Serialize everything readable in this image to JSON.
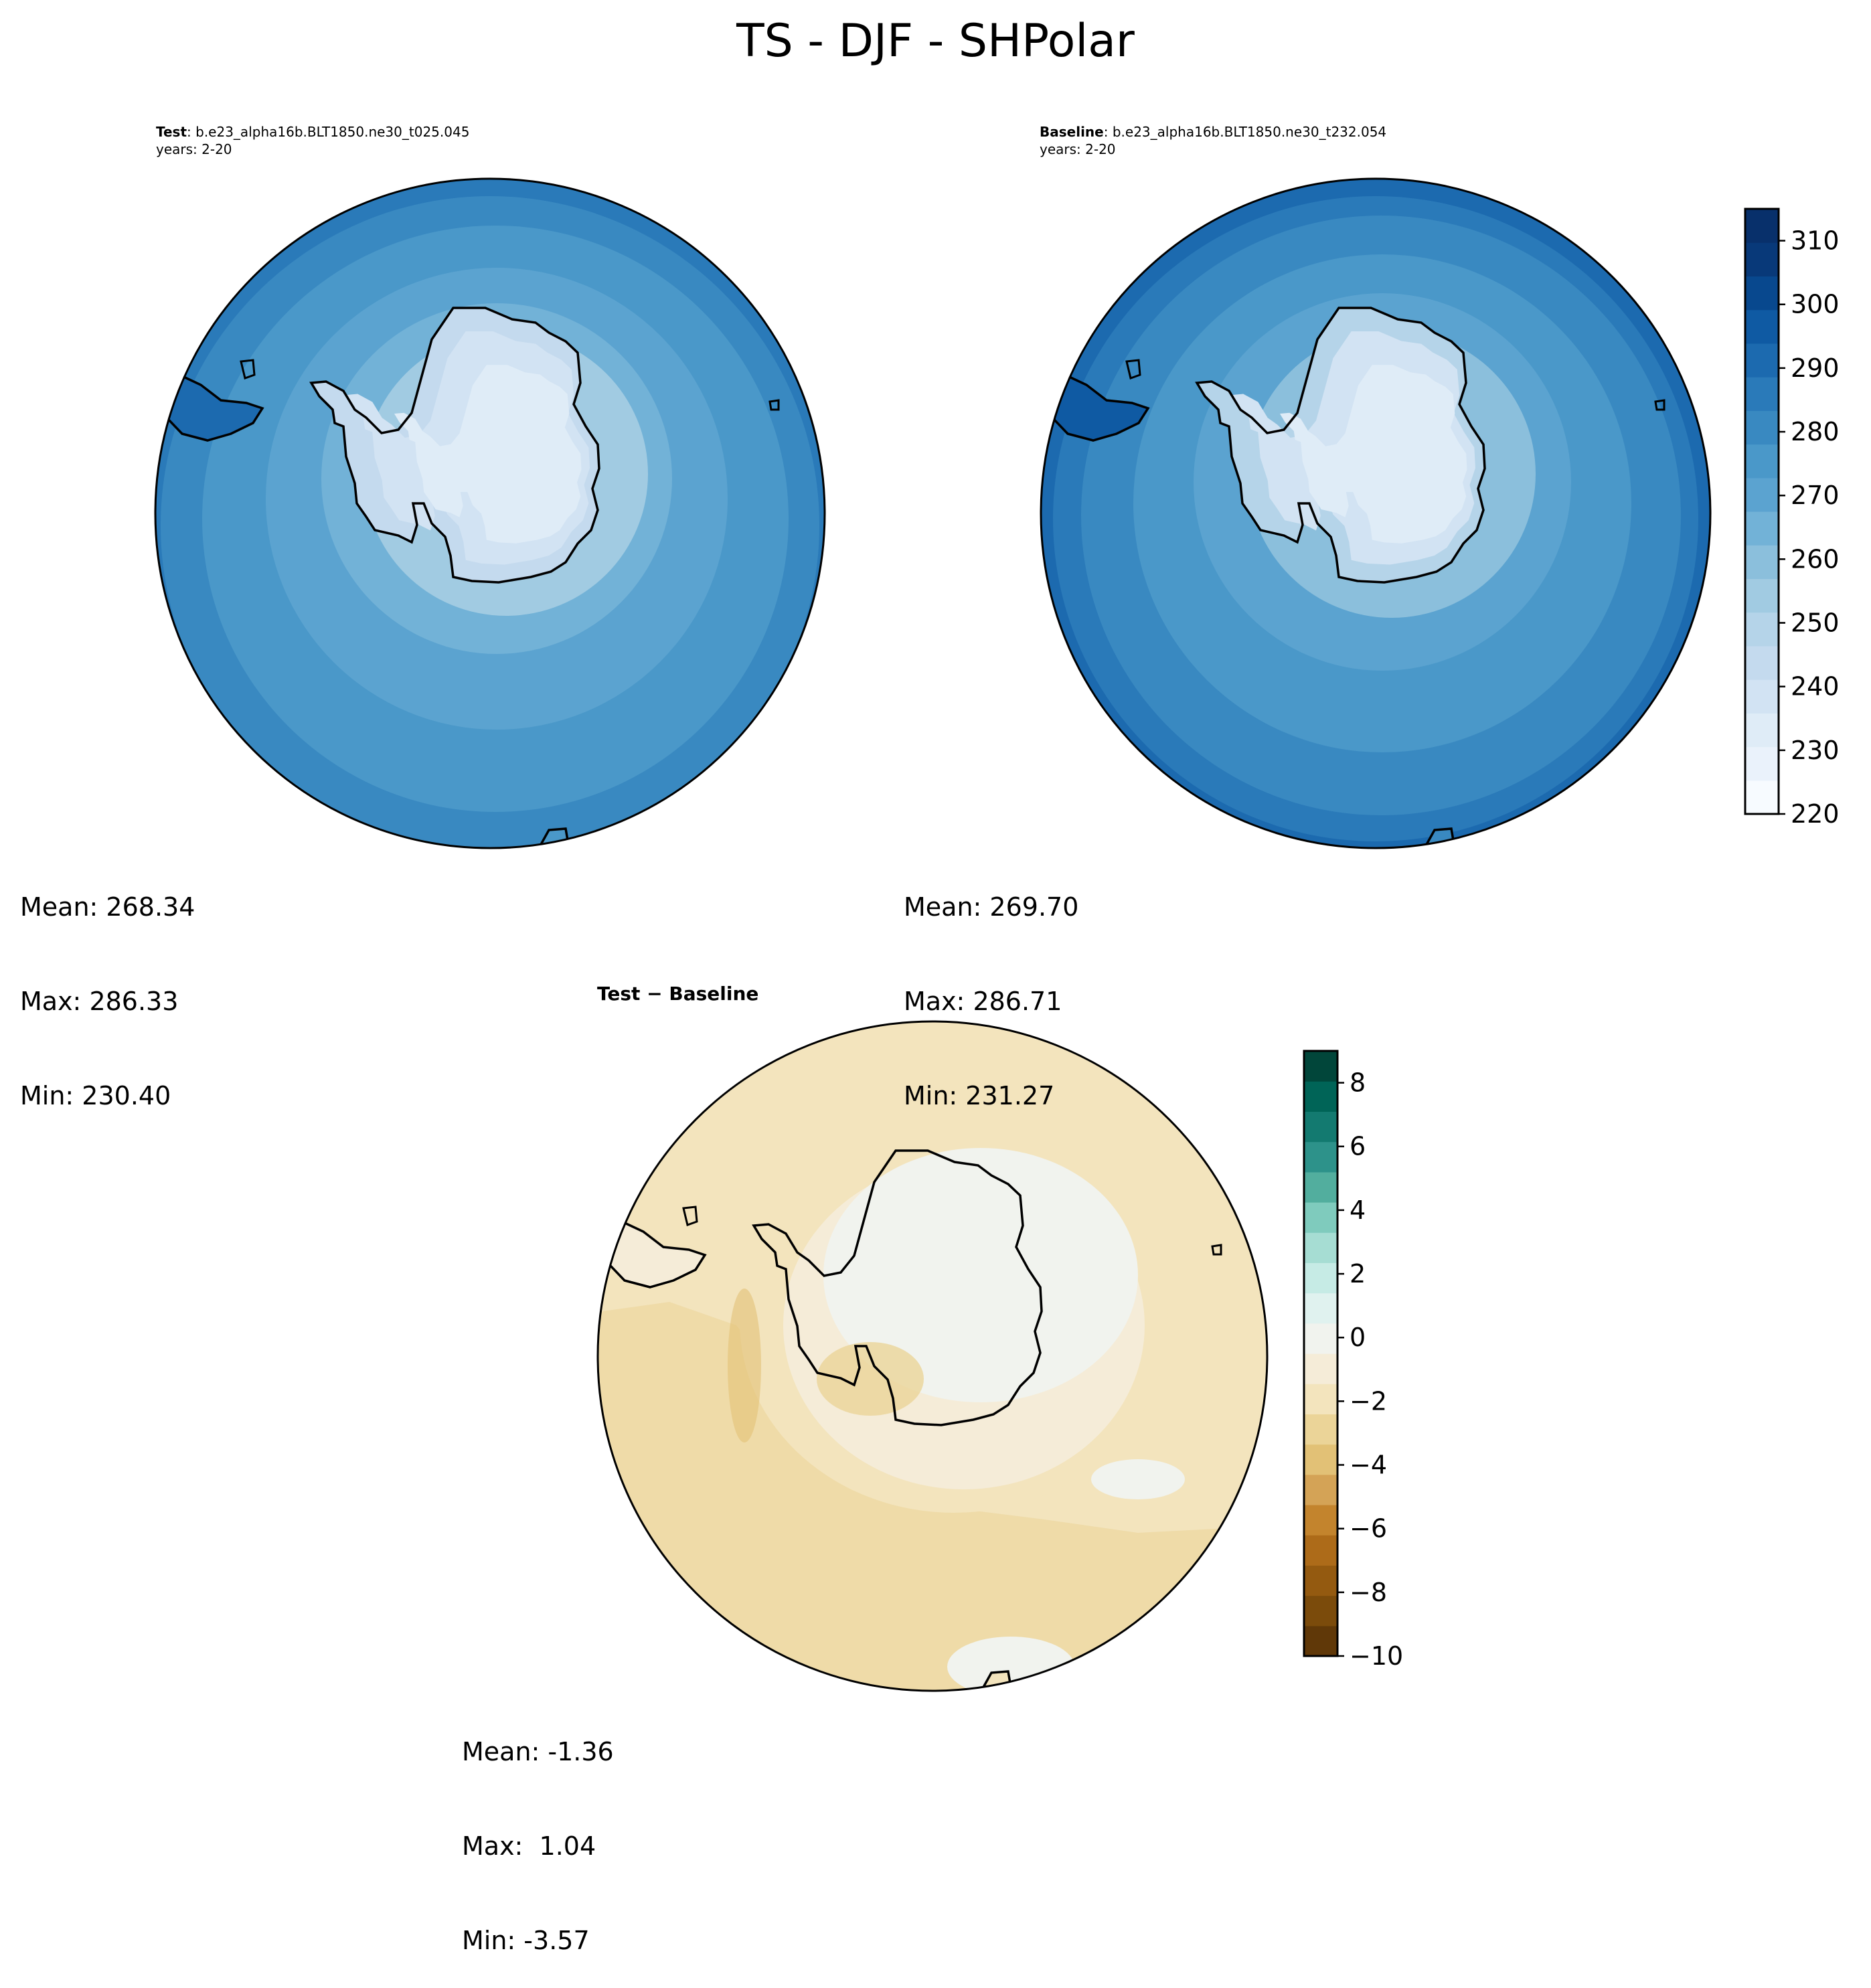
{
  "figure": {
    "title": "TS - DJF - SHPolar"
  },
  "panels": [
    {
      "id": "test",
      "label": "Test",
      "case": "b.e23_alpha16b.BLT1850.ne30_t025.045",
      "years": "years: 2-20",
      "stats": {
        "mean": "Mean: 268.34",
        "max": "Max: 286.33",
        "min": "Min: 230.40"
      }
    },
    {
      "id": "baseline",
      "label": "Baseline",
      "case": "b.e23_alpha16b.BLT1850.ne30_t232.054",
      "years": "years: 2-20",
      "stats": {
        "mean": "Mean: 269.70",
        "max": "Max: 286.71",
        "min": "Min: 231.27"
      }
    },
    {
      "id": "diff",
      "label": "Test − Baseline",
      "stats": {
        "mean": "Mean: -1.36",
        "max": "Max:  1.04",
        "min": "Min: -3.57"
      }
    }
  ],
  "colorbars": {
    "main": {
      "ticks": [
        "310",
        "300",
        "290",
        "280",
        "270",
        "260",
        "250",
        "240",
        "230",
        "220"
      ],
      "range": [
        220,
        315
      ]
    },
    "diff": {
      "ticks": [
        "8",
        "6",
        "4",
        "2",
        "0",
        "−2",
        "−4",
        "−6",
        "−8",
        "−10"
      ],
      "range": [
        -10,
        9
      ]
    }
  },
  "colors": {
    "blues": [
      "#f7fbff",
      "#eaf2fb",
      "#dfecf7",
      "#d2e3f3",
      "#c4daee",
      "#b5d4e9",
      "#a1cbe2",
      "#8bbfdc",
      "#72b2d7",
      "#5ba3d0",
      "#4a98c9",
      "#3989c1",
      "#2a7ab9",
      "#1c6aaf",
      "#0f5aa3",
      "#08488e",
      "#083979",
      "#08306b"
    ],
    "brbg": [
      "#603808",
      "#7b4b0b",
      "#945a10",
      "#ad6b19",
      "#c3842d",
      "#d4a356",
      "#e2c176",
      "#ebd498",
      "#f3e4bd",
      "#f5ecd8",
      "#f1f3ee",
      "#e0f2ef",
      "#c6ebe5",
      "#a6ddd3",
      "#7fcbbd",
      "#52ae9e",
      "#2d928a",
      "#137a70",
      "#006457",
      "#01463a"
    ]
  }
}
